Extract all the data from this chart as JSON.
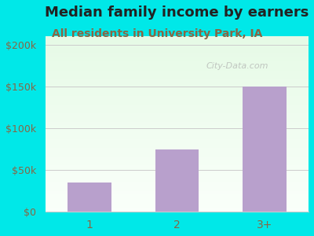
{
  "title": "Median family income by earners",
  "subtitle": "All residents in University Park, IA",
  "categories": [
    "1",
    "2",
    "3+"
  ],
  "values": [
    35000,
    75000,
    150000
  ],
  "bar_color": "#b8a0cc",
  "title_color": "#222222",
  "subtitle_color": "#886644",
  "background_color": "#00e8e8",
  "yticks": [
    0,
    50000,
    100000,
    150000,
    200000
  ],
  "ytick_labels": [
    "$0",
    "$50k",
    "$100k",
    "$150k",
    "$200k"
  ],
  "ylim": [
    0,
    210000
  ],
  "title_fontsize": 13,
  "subtitle_fontsize": 10,
  "tick_color": "#886644",
  "watermark": "City-Data.com",
  "grid_color": "#cccccc"
}
